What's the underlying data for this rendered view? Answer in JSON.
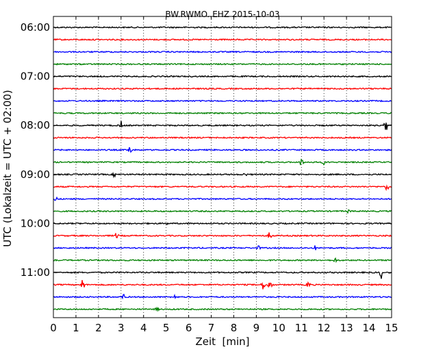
{
  "chart_data": {
    "type": "line",
    "title": "BW.RWMO..EHZ 2015-10-03",
    "xlabel": "Zeit  [min]",
    "ylabel": "UTC (Lokalzeit = UTC + 02:00)",
    "xlim": [
      0,
      15
    ],
    "x_ticks": [
      0,
      1,
      2,
      3,
      4,
      5,
      6,
      7,
      8,
      9,
      10,
      11,
      12,
      13,
      14,
      15
    ],
    "y_tick_labels": [
      "06:00",
      "07:00",
      "08:00",
      "09:00",
      "10:00",
      "11:00"
    ],
    "trace_interval_minutes": 15,
    "grid": "vertical dotted",
    "colors": [
      "#000000",
      "#ff0000",
      "#0000ff",
      "#008000"
    ],
    "series": [
      {
        "start": "06:00",
        "color": "#000000",
        "events": []
      },
      {
        "start": "06:15",
        "color": "#ff0000",
        "events": []
      },
      {
        "start": "06:30",
        "color": "#0000ff",
        "events": []
      },
      {
        "start": "06:45",
        "color": "#008000",
        "events": []
      },
      {
        "start": "07:00",
        "color": "#000000",
        "events": []
      },
      {
        "start": "07:15",
        "color": "#ff0000",
        "events": []
      },
      {
        "start": "07:30",
        "color": "#0000ff",
        "events": []
      },
      {
        "start": "07:45",
        "color": "#008000",
        "events": []
      },
      {
        "start": "08:00",
        "color": "#000000",
        "events": [
          {
            "x": 3.0,
            "amp": 0.5
          },
          {
            "x": 14.75,
            "amp": 0.7
          }
        ]
      },
      {
        "start": "08:15",
        "color": "#ff0000",
        "events": []
      },
      {
        "start": "08:30",
        "color": "#0000ff",
        "events": [
          {
            "x": 3.4,
            "amp": 0.6
          }
        ]
      },
      {
        "start": "08:45",
        "color": "#008000",
        "events": [
          {
            "x": 11.0,
            "amp": 0.5
          },
          {
            "x": 12.0,
            "amp": 0.3
          }
        ]
      },
      {
        "start": "09:00",
        "color": "#000000",
        "events": [
          {
            "x": 2.7,
            "amp": 0.3
          },
          {
            "x": 8.5,
            "amp": 0.3
          }
        ]
      },
      {
        "start": "09:15",
        "color": "#ff0000",
        "events": [
          {
            "x": 14.8,
            "amp": 0.5
          }
        ]
      },
      {
        "start": "09:30",
        "color": "#0000ff",
        "events": [
          {
            "x": 0.1,
            "amp": 0.3
          }
        ]
      },
      {
        "start": "09:45",
        "color": "#008000",
        "events": [
          {
            "x": 13.1,
            "amp": 0.3
          }
        ]
      },
      {
        "start": "10:00",
        "color": "#000000",
        "events": [
          {
            "x": 5.0,
            "amp": 0.2
          }
        ]
      },
      {
        "start": "10:15",
        "color": "#ff0000",
        "events": [
          {
            "x": 2.8,
            "amp": 0.4
          },
          {
            "x": 9.6,
            "amp": 0.5
          }
        ]
      },
      {
        "start": "10:30",
        "color": "#0000ff",
        "events": [
          {
            "x": 9.1,
            "amp": 0.3
          },
          {
            "x": 11.6,
            "amp": 0.3
          }
        ]
      },
      {
        "start": "10:45",
        "color": "#008000",
        "events": [
          {
            "x": 12.5,
            "amp": 0.3
          }
        ]
      },
      {
        "start": "11:00",
        "color": "#000000",
        "events": [
          {
            "x": 14.55,
            "amp": 0.7
          }
        ]
      },
      {
        "start": "11:15",
        "color": "#ff0000",
        "events": [
          {
            "x": 1.3,
            "amp": 0.8
          },
          {
            "x": 9.3,
            "amp": 0.6
          },
          {
            "x": 9.6,
            "amp": 0.7
          },
          {
            "x": 11.3,
            "amp": 0.5
          }
        ]
      },
      {
        "start": "11:30",
        "color": "#0000ff",
        "events": [
          {
            "x": 3.1,
            "amp": 0.4
          },
          {
            "x": 5.4,
            "amp": 0.3
          }
        ]
      },
      {
        "start": "11:45",
        "color": "#008000",
        "events": [
          {
            "x": 4.6,
            "amp": 0.3
          }
        ]
      }
    ]
  }
}
